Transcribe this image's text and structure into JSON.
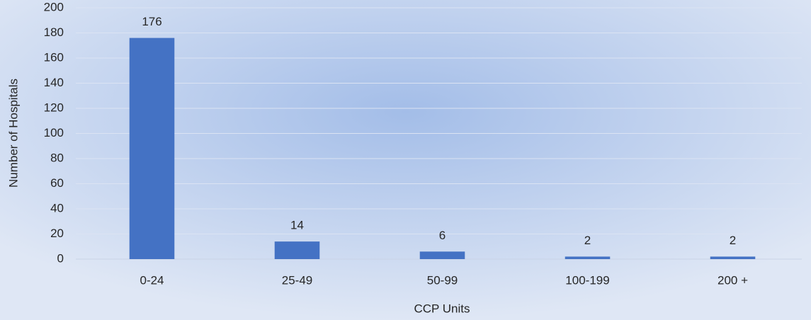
{
  "chart_data": {
    "type": "bar",
    "x_label": "CCP Units",
    "y_label": "Number of Hospitals",
    "categories": [
      "0-24",
      "25-49",
      "50-99",
      "100-199",
      "200 +"
    ],
    "values": [
      176,
      14,
      6,
      2,
      2
    ],
    "color": "#4472c4",
    "ylim": [
      0,
      200
    ],
    "yticks": [
      0,
      20,
      40,
      60,
      80,
      100,
      120,
      140,
      160,
      180,
      200
    ],
    "grid": true
  }
}
